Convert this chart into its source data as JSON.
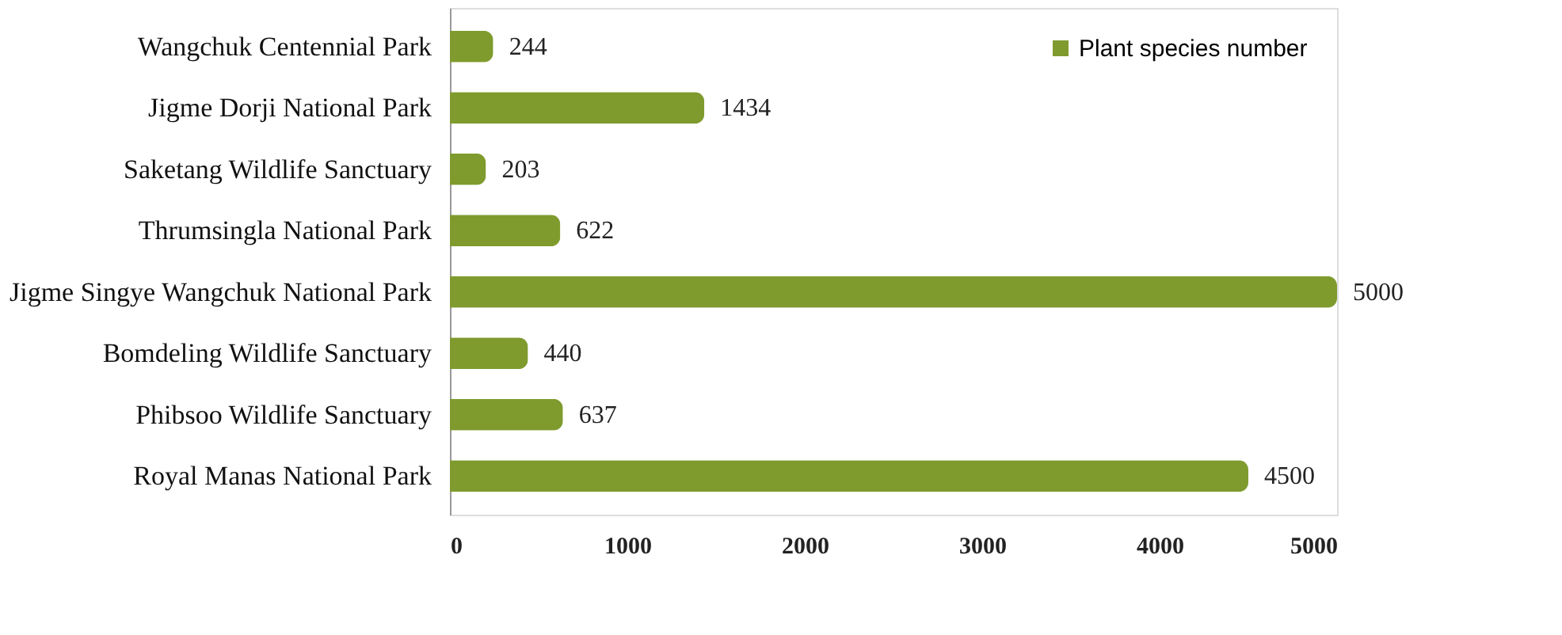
{
  "chart_data": {
    "type": "bar",
    "orientation": "horizontal",
    "categories": [
      "Wangchuk Centennial Park",
      "Jigme Dorji National Park",
      "Saketang Wildlife Sanctuary",
      "Thrumsingla National Park",
      "Jigme Singye Wangchuk National Park",
      "Bomdeling Wildlife Sanctuary",
      "Phibsoo Wildlife Sanctuary",
      "Royal Manas  National Park"
    ],
    "series": [
      {
        "name": "Plant species number",
        "color": "#7f9b2e",
        "values": [
          244,
          1434,
          203,
          622,
          5000,
          440,
          637,
          4500
        ]
      }
    ],
    "xlim": [
      0,
      5000
    ],
    "xticks": [
      0,
      1000,
      2000,
      3000,
      4000,
      5000
    ],
    "data_labels": true,
    "legend": "top right",
    "grid": false
  }
}
